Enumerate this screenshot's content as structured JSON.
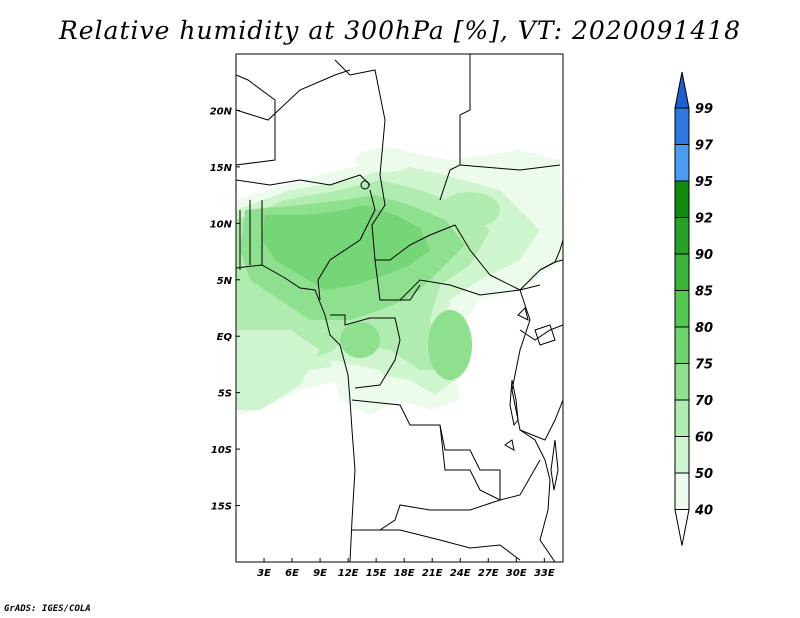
{
  "title": "Relative humidity at 300hPa [%], VT: 2020091418",
  "credit": "GrADS: IGES/COLA",
  "map": {
    "lon_range": [
      0,
      35
    ],
    "lat_range": [
      -20,
      25
    ],
    "lon_ticks": [
      "3E",
      "6E",
      "9E",
      "12E",
      "15E",
      "18E",
      "21E",
      "24E",
      "27E",
      "30E",
      "33E"
    ],
    "lat_ticks": [
      "20N",
      "15N",
      "10N",
      "5N",
      "EQ",
      "5S",
      "10S",
      "15S"
    ]
  },
  "colorbar": {
    "levels": [
      "99",
      "97",
      "95",
      "92",
      "90",
      "85",
      "80",
      "75",
      "70",
      "60",
      "50",
      "40"
    ],
    "colors": [
      "#1e5fd0",
      "#2a78e0",
      "#4a9cf0",
      "#0f8a0f",
      "#26a026",
      "#3cb43c",
      "#52c852",
      "#6ed26e",
      "#8ee08e",
      "#b0ecb0",
      "#cff5cf",
      "#ecfbec",
      "#ffffff"
    ]
  },
  "fill_colors": [
    "#ecfbec",
    "#cff5cf",
    "#b0ecb0",
    "#8ee08e",
    "#6ed26e"
  ]
}
